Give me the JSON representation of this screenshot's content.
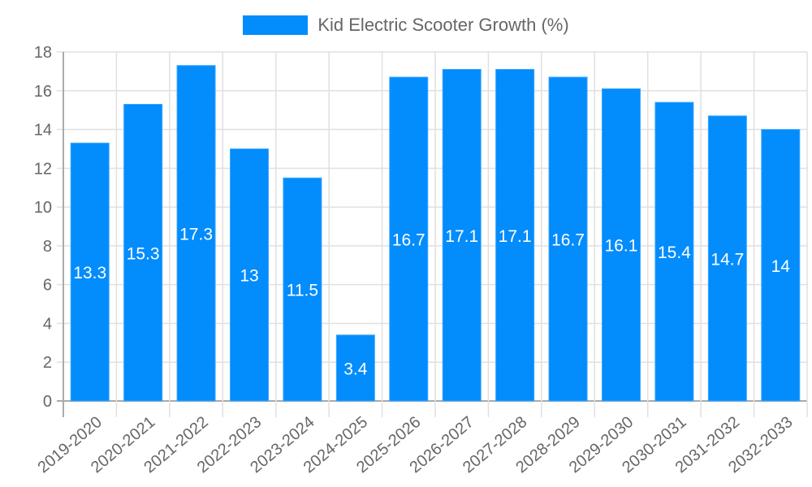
{
  "chart_data": {
    "type": "bar",
    "title": "",
    "legend": [
      {
        "label": "Kid Electric Scooter Growth (%)",
        "color": "#038cfc"
      }
    ],
    "legend_position": "top",
    "xlabel": "",
    "ylabel": "",
    "ylim": [
      0,
      18
    ],
    "yticks": [
      0,
      2,
      4,
      6,
      8,
      10,
      12,
      14,
      16,
      18
    ],
    "grid": true,
    "categories": [
      "2019-2020",
      "2020-2021",
      "2021-2022",
      "2022-2023",
      "2023-2024",
      "2024-2025",
      "2025-2026",
      "2026-2027",
      "2027-2028",
      "2028-2029",
      "2029-2030",
      "2030-2031",
      "2031-2032",
      "2032-2033"
    ],
    "series": [
      {
        "name": "Kid Electric Scooter Growth (%)",
        "color": "#038cfc",
        "values": [
          13.3,
          15.3,
          17.3,
          13,
          11.5,
          3.4,
          16.7,
          17.1,
          17.1,
          16.7,
          16.1,
          15.4,
          14.7,
          14
        ]
      }
    ],
    "data_labels": [
      "13.3",
      "15.3",
      "17.3",
      "13",
      "11.5",
      "3.4",
      "16.7",
      "17.1",
      "17.1",
      "16.7",
      "16.1",
      "15.4",
      "14.7",
      "14"
    ]
  },
  "legend": {
    "label": "Kid Electric Scooter Growth (%)"
  }
}
